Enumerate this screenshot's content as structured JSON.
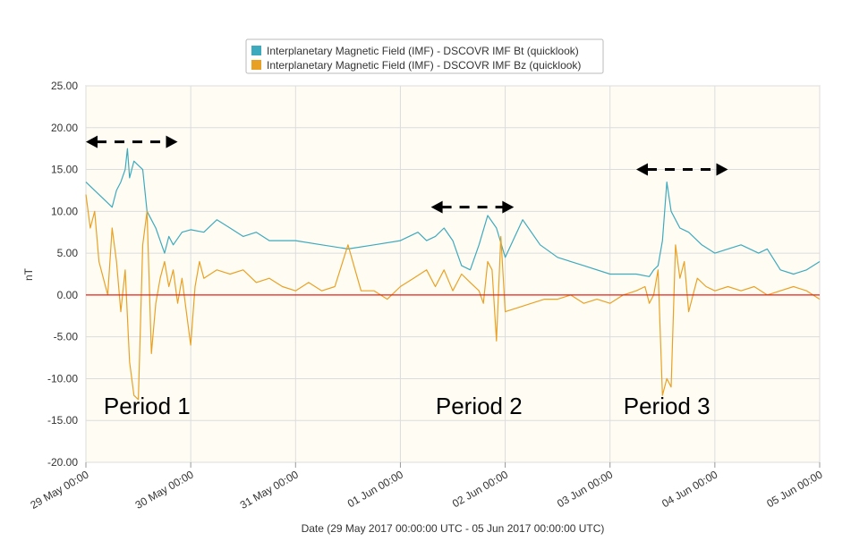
{
  "chart_data": {
    "type": "line",
    "title": "",
    "xlabel": "Date (29 May 2017 00:00:00 UTC - 05 Jun 2017 00:00:00 UTC)",
    "ylabel": "nT",
    "ylim": [
      -20,
      25
    ],
    "yticks": [
      25,
      20,
      15,
      10,
      5,
      0,
      -5,
      -10,
      -15,
      -20
    ],
    "ytick_labels": [
      "25.00",
      "20.00",
      "15.00",
      "10.00",
      "5.00",
      "0.00",
      "-5.00",
      "-10.00",
      "-15.00",
      "-20.00"
    ],
    "xlim": [
      "2017-05-29T00:00",
      "2017-06-05T00:00"
    ],
    "xtick_labels": [
      "29 May 00:00",
      "30 May 00:00",
      "31 May 00:00",
      "01 Jun 00:00",
      "02 Jun 00:00",
      "03 Jun 00:00",
      "04 Jun 00:00",
      "05 Jun 00:00"
    ],
    "grid": true,
    "legend_position": "top",
    "background_color": "#fffdf3",
    "zero_line_color": "#e8211b",
    "series": [
      {
        "name": "Interplanetary Magnetic Field (IMF) - DSCOVR IMF Bt (quicklook)",
        "color": "#3eaabd",
        "x": [
          "2017-05-29T00:00",
          "2017-05-29T03:00",
          "2017-05-29T06:00",
          "2017-05-29T07:00",
          "2017-05-29T08:00",
          "2017-05-29T09:00",
          "2017-05-29T09:30",
          "2017-05-29T10:00",
          "2017-05-29T11:00",
          "2017-05-29T12:00",
          "2017-05-29T13:00",
          "2017-05-29T14:00",
          "2017-05-29T15:00",
          "2017-05-29T16:00",
          "2017-05-29T17:00",
          "2017-05-29T18:00",
          "2017-05-29T19:00",
          "2017-05-29T20:00",
          "2017-05-29T22:00",
          "2017-05-30T00:00",
          "2017-05-30T03:00",
          "2017-05-30T06:00",
          "2017-05-30T09:00",
          "2017-05-30T12:00",
          "2017-05-30T15:00",
          "2017-05-30T18:00",
          "2017-05-31T00:00",
          "2017-05-31T06:00",
          "2017-05-31T12:00",
          "2017-05-31T18:00",
          "2017-06-01T00:00",
          "2017-06-01T04:00",
          "2017-06-01T06:00",
          "2017-06-01T08:00",
          "2017-06-01T10:00",
          "2017-06-01T12:00",
          "2017-06-01T14:00",
          "2017-06-01T16:00",
          "2017-06-01T18:00",
          "2017-06-01T20:00",
          "2017-06-01T22:00",
          "2017-06-02T00:00",
          "2017-06-02T04:00",
          "2017-06-02T08:00",
          "2017-06-02T12:00",
          "2017-06-02T18:00",
          "2017-06-03T00:00",
          "2017-06-03T06:00",
          "2017-06-03T09:00",
          "2017-06-03T10:00",
          "2017-06-03T11:00",
          "2017-06-03T12:00",
          "2017-06-03T13:00",
          "2017-06-03T14:00",
          "2017-06-03T16:00",
          "2017-06-03T18:00",
          "2017-06-03T21:00",
          "2017-06-04T00:00",
          "2017-06-04T06:00",
          "2017-06-04T10:00",
          "2017-06-04T12:00",
          "2017-06-04T15:00",
          "2017-06-04T18:00",
          "2017-06-04T21:00",
          "2017-06-05T00:00"
        ],
        "values": [
          13.5,
          12.0,
          10.5,
          12.5,
          13.5,
          15.0,
          17.5,
          14.0,
          16.0,
          15.5,
          15.0,
          10.0,
          9.0,
          8.0,
          6.5,
          5.0,
          7.0,
          6.0,
          7.5,
          7.8,
          7.5,
          9.0,
          8.0,
          7.0,
          7.5,
          6.5,
          6.5,
          6.0,
          5.5,
          6.0,
          6.5,
          7.5,
          6.5,
          7.0,
          8.0,
          6.5,
          3.5,
          3.0,
          6.0,
          9.5,
          8.0,
          4.5,
          9.0,
          6.0,
          4.5,
          3.5,
          2.5,
          2.5,
          2.2,
          3.0,
          3.5,
          6.5,
          13.5,
          10.0,
          8.0,
          7.5,
          6.0,
          5.0,
          6.0,
          5.0,
          5.5,
          3.0,
          2.5,
          3.0,
          4.0
        ]
      },
      {
        "name": "Interplanetary Magnetic Field (IMF) - DSCOVR IMF Bz (quicklook)",
        "color": "#e9a125",
        "x": [
          "2017-05-29T00:00",
          "2017-05-29T01:00",
          "2017-05-29T02:00",
          "2017-05-29T03:00",
          "2017-05-29T04:00",
          "2017-05-29T05:00",
          "2017-05-29T06:00",
          "2017-05-29T07:00",
          "2017-05-29T08:00",
          "2017-05-29T09:00",
          "2017-05-29T10:00",
          "2017-05-29T11:00",
          "2017-05-29T12:00",
          "2017-05-29T13:00",
          "2017-05-29T14:00",
          "2017-05-29T15:00",
          "2017-05-29T16:00",
          "2017-05-29T17:00",
          "2017-05-29T18:00",
          "2017-05-29T19:00",
          "2017-05-29T20:00",
          "2017-05-29T21:00",
          "2017-05-29T22:00",
          "2017-05-30T00:00",
          "2017-05-30T01:00",
          "2017-05-30T02:00",
          "2017-05-30T03:00",
          "2017-05-30T06:00",
          "2017-05-30T09:00",
          "2017-05-30T12:00",
          "2017-05-30T15:00",
          "2017-05-30T18:00",
          "2017-05-30T21:00",
          "2017-05-31T00:00",
          "2017-05-31T03:00",
          "2017-05-31T06:00",
          "2017-05-31T09:00",
          "2017-05-31T12:00",
          "2017-05-31T15:00",
          "2017-05-31T18:00",
          "2017-05-31T21:00",
          "2017-06-01T00:00",
          "2017-06-01T03:00",
          "2017-06-01T06:00",
          "2017-06-01T08:00",
          "2017-06-01T10:00",
          "2017-06-01T12:00",
          "2017-06-01T14:00",
          "2017-06-01T16:00",
          "2017-06-01T18:00",
          "2017-06-01T19:00",
          "2017-06-01T20:00",
          "2017-06-01T21:00",
          "2017-06-01T22:00",
          "2017-06-01T23:00",
          "2017-06-02T00:00",
          "2017-06-02T03:00",
          "2017-06-02T06:00",
          "2017-06-02T09:00",
          "2017-06-02T12:00",
          "2017-06-02T15:00",
          "2017-06-02T18:00",
          "2017-06-02T21:00",
          "2017-06-03T00:00",
          "2017-06-03T03:00",
          "2017-06-03T06:00",
          "2017-06-03T08:00",
          "2017-06-03T09:00",
          "2017-06-03T10:00",
          "2017-06-03T11:00",
          "2017-06-03T12:00",
          "2017-06-03T13:00",
          "2017-06-03T14:00",
          "2017-06-03T15:00",
          "2017-06-03T16:00",
          "2017-06-03T17:00",
          "2017-06-03T18:00",
          "2017-06-03T20:00",
          "2017-06-03T22:00",
          "2017-06-04T00:00",
          "2017-06-04T03:00",
          "2017-06-04T06:00",
          "2017-06-04T09:00",
          "2017-06-04T12:00",
          "2017-06-04T15:00",
          "2017-06-04T18:00",
          "2017-06-04T21:00",
          "2017-06-05T00:00"
        ],
        "values": [
          12.0,
          8.0,
          10.0,
          4.0,
          2.0,
          0.0,
          8.0,
          4.0,
          -2.0,
          3.0,
          -8.0,
          -12.0,
          -12.5,
          6.0,
          10.0,
          -7.0,
          -1.0,
          2.0,
          4.0,
          1.0,
          3.0,
          -1.0,
          2.0,
          -6.0,
          1.0,
          4.0,
          2.0,
          3.0,
          2.5,
          3.0,
          1.5,
          2.0,
          1.0,
          0.5,
          1.5,
          0.5,
          1.0,
          6.0,
          0.5,
          0.5,
          -0.5,
          1.0,
          2.0,
          3.0,
          1.0,
          3.0,
          0.5,
          2.5,
          1.5,
          0.5,
          -1.0,
          4.0,
          3.0,
          -5.5,
          7.0,
          -2.0,
          -1.5,
          -1.0,
          -0.5,
          -0.5,
          0.0,
          -1.0,
          -0.5,
          -1.0,
          0.0,
          0.5,
          1.0,
          -1.0,
          0.0,
          3.0,
          -12.0,
          -10.0,
          -11.0,
          6.0,
          2.0,
          4.0,
          -2.0,
          2.0,
          1.0,
          0.5,
          1.0,
          0.5,
          1.0,
          0.0,
          0.5,
          1.0,
          0.5,
          -0.5
        ]
      }
    ],
    "annotations": [
      {
        "text": "Period 1",
        "x": "2017-05-29T14:00"
      },
      {
        "text": "Period 2",
        "x": "2017-06-01T18:00"
      },
      {
        "text": "Period 3",
        "x": "2017-06-03T13:00"
      }
    ],
    "period_arrows": [
      {
        "name": "period-1-arrow",
        "start": "2017-05-29T00:00",
        "end": "2017-05-29T21:00",
        "y": 18.3
      },
      {
        "name": "period-2-arrow",
        "start": "2017-06-01T07:00",
        "end": "2017-06-01T26:00",
        "y": 10.5
      },
      {
        "name": "period-3-arrow",
        "start": "2017-06-03T06:00",
        "end": "2017-06-03T27:00",
        "y": 15.0
      }
    ]
  }
}
